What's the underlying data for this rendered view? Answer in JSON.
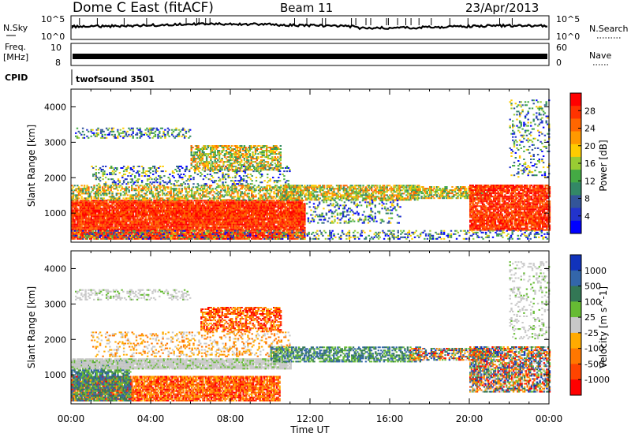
{
  "header": {
    "station": "Dome C East (fitACF)",
    "beam": "Beam 11",
    "date": "23/Apr/2013"
  },
  "status_panels": {
    "nsky_label": "N.Sky",
    "nsky_ticks": [
      "10^5",
      "10^0"
    ],
    "nsearch_label": "N.Search",
    "nsearch_ticks": [
      "10^5",
      "10^0"
    ],
    "freq_label": "Freq.",
    "freq_unit": "[MHz]",
    "freq_ticks": [
      "10",
      "8"
    ],
    "nave_label": "Nave",
    "nave_ticks": [
      "60",
      "0"
    ],
    "cpid_label": "CPID",
    "cpid_value": "twofsound  3501"
  },
  "chart_data": [
    {
      "type": "heatmap",
      "panel": "power",
      "ylabel": "Slant Range [km]",
      "xlabel": "",
      "x_range_hours": [
        0,
        24
      ],
      "ylim": [
        180,
        4500
      ],
      "xticks": [
        "00:00",
        "04:00",
        "08:00",
        "12:00",
        "16:00",
        "20:00",
        "00:00"
      ],
      "yticks": [
        1000,
        2000,
        3000,
        4000
      ],
      "colorbar": {
        "label": "Power [dB]",
        "ticks": [
          "28",
          "24",
          "20",
          "16",
          "12",
          "8",
          "4"
        ],
        "colors": [
          "#ff0000",
          "#ff3300",
          "#ff6600",
          "#ff9900",
          "#ffcc00",
          "#99cc33",
          "#44aa44",
          "#338866",
          "#335599",
          "#2233cc",
          "#0000ff"
        ]
      },
      "regions": [
        {
          "t0": 0.0,
          "t1": 11.7,
          "r0": 250,
          "r1": 1350,
          "value": "strong",
          "density": 0.95
        },
        {
          "t0": 0.0,
          "t1": 11.5,
          "r0": 1350,
          "r1": 1800,
          "value": "medium",
          "density": 0.55
        },
        {
          "t0": 1.0,
          "t1": 11.0,
          "r0": 1800,
          "r1": 2300,
          "value": "weak",
          "density": 0.25
        },
        {
          "t0": 6.0,
          "t1": 10.5,
          "r0": 2200,
          "r1": 2900,
          "value": "medium",
          "density": 0.6
        },
        {
          "t0": 0.2,
          "t1": 6.0,
          "r0": 3100,
          "r1": 3400,
          "value": "weak",
          "density": 0.35
        },
        {
          "t0": 10.5,
          "t1": 17.5,
          "r0": 1350,
          "r1": 1800,
          "value": "medium",
          "density": 0.7
        },
        {
          "t0": 11.8,
          "t1": 16.5,
          "r0": 700,
          "r1": 1350,
          "value": "weak",
          "density": 0.25
        },
        {
          "t0": 17.0,
          "t1": 21.0,
          "r0": 1400,
          "r1": 1750,
          "value": "medium",
          "density": 0.65
        },
        {
          "t0": 20.0,
          "t1": 24.0,
          "r0": 500,
          "r1": 1800,
          "value": "strong",
          "density": 0.85
        },
        {
          "t0": 0.0,
          "t1": 24.0,
          "r0": 250,
          "r1": 500,
          "value": "weak",
          "density": 0.3
        },
        {
          "t0": 22.0,
          "t1": 24.0,
          "r0": 2000,
          "r1": 4200,
          "value": "weak",
          "density": 0.2
        }
      ]
    },
    {
      "type": "heatmap",
      "panel": "velocity",
      "ylabel": "Slant Range [km]",
      "xlabel": "Time UT",
      "x_range_hours": [
        0,
        24
      ],
      "ylim": [
        180,
        4500
      ],
      "xticks": [
        "00:00",
        "04:00",
        "08:00",
        "12:00",
        "16:00",
        "20:00",
        "00:00"
      ],
      "yticks": [
        1000,
        2000,
        3000,
        4000
      ],
      "colorbar": {
        "label": "Velocity [m s^-1]",
        "ticks": [
          "1000",
          "500",
          "100",
          "25",
          "-25",
          "-100",
          "-500",
          "-1000"
        ],
        "colors": [
          "#1133bb",
          "#3366aa",
          "#337755",
          "#66bb33",
          "#c8c8c8",
          "#ffaa00",
          "#ff7700",
          "#ff4400",
          "#ff0000"
        ]
      },
      "regions": [
        {
          "t0": 0.0,
          "t1": 10.5,
          "r0": 250,
          "r1": 950,
          "value": "away",
          "density": 0.85
        },
        {
          "t0": 0.0,
          "t1": 3.0,
          "r0": 250,
          "r1": 1400,
          "value": "toward",
          "density": 0.7
        },
        {
          "t0": 0.0,
          "t1": 11.0,
          "r0": 1150,
          "r1": 1450,
          "value": "zero",
          "density": 0.9
        },
        {
          "t0": 1.0,
          "t1": 11.0,
          "r0": 1500,
          "r1": 2200,
          "value": "weak-away",
          "density": 0.25
        },
        {
          "t0": 6.5,
          "t1": 10.5,
          "r0": 2200,
          "r1": 2900,
          "value": "away",
          "density": 0.6
        },
        {
          "t0": 0.2,
          "t1": 6.0,
          "r0": 3100,
          "r1": 3400,
          "value": "zero",
          "density": 0.35
        },
        {
          "t0": 10.0,
          "t1": 17.5,
          "r0": 1350,
          "r1": 1800,
          "value": "toward",
          "density": 0.6
        },
        {
          "t0": 17.0,
          "t1": 21.0,
          "r0": 1400,
          "r1": 1750,
          "value": "mixed",
          "density": 0.6
        },
        {
          "t0": 20.0,
          "t1": 24.0,
          "r0": 500,
          "r1": 1800,
          "value": "mixed",
          "density": 0.7
        },
        {
          "t0": 22.0,
          "t1": 24.0,
          "r0": 2000,
          "r1": 4200,
          "value": "zero",
          "density": 0.2
        }
      ]
    }
  ]
}
